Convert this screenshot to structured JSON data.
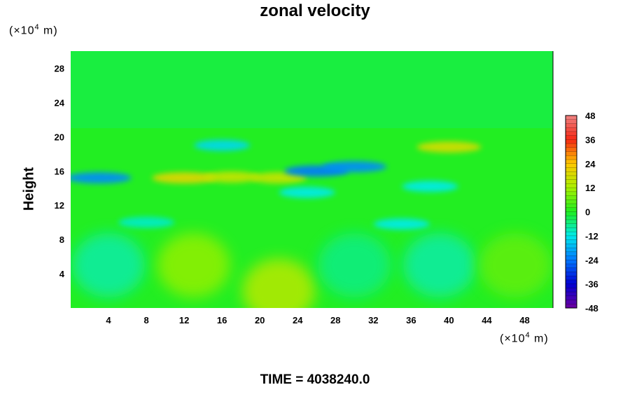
{
  "chart_data": {
    "type": "heatmap",
    "title": "zonal velocity",
    "ylabel": "Height",
    "xlabel": "",
    "x_unit": "(×10",
    "x_unit_exp": "4",
    "x_unit_tail": " m)",
    "y_unit": "(×10",
    "y_unit_exp": "4",
    "y_unit_tail": " m)",
    "xlim": [
      0,
      51
    ],
    "ylim": [
      0,
      30
    ],
    "x_ticks": [
      4,
      8,
      12,
      16,
      20,
      24,
      28,
      32,
      36,
      40,
      44,
      48
    ],
    "y_ticks": [
      4,
      8,
      12,
      16,
      20,
      24,
      28
    ],
    "colorbar": {
      "min": -48,
      "max": 48,
      "ticks": [
        48,
        36,
        24,
        12,
        0,
        -12,
        -24,
        -36,
        -48
      ]
    },
    "footer": "TIME = 4038240.0",
    "fields": {
      "upper_layer": {
        "y_range": [
          21,
          30
        ],
        "value": -2
      },
      "lower_cells": [
        {
          "x": 4,
          "y": 5,
          "value": -8
        },
        {
          "x": 13,
          "y": 5,
          "value": 10
        },
        {
          "x": 22,
          "y": 2,
          "value": 14
        },
        {
          "x": 30,
          "y": 5,
          "value": -6
        },
        {
          "x": 39,
          "y": 5,
          "value": -8
        },
        {
          "x": 47,
          "y": 5,
          "value": 6
        }
      ],
      "jet_features": [
        {
          "x": 40,
          "y": 18.8,
          "value": 18
        },
        {
          "x": 12,
          "y": 15.2,
          "value": 20
        },
        {
          "x": 17,
          "y": 15.3,
          "value": 16
        },
        {
          "x": 22,
          "y": 15.2,
          "value": 16
        },
        {
          "x": 3,
          "y": 15.2,
          "value": -22
        },
        {
          "x": 26,
          "y": 16,
          "value": -24
        },
        {
          "x": 30,
          "y": 16.5,
          "value": -22
        },
        {
          "x": 16,
          "y": 19,
          "value": -14
        },
        {
          "x": 38,
          "y": 14.2,
          "value": -12
        },
        {
          "x": 25,
          "y": 13.5,
          "value": -12
        },
        {
          "x": 8,
          "y": 10,
          "value": -10
        },
        {
          "x": 35,
          "y": 9.8,
          "value": -12
        }
      ]
    }
  }
}
